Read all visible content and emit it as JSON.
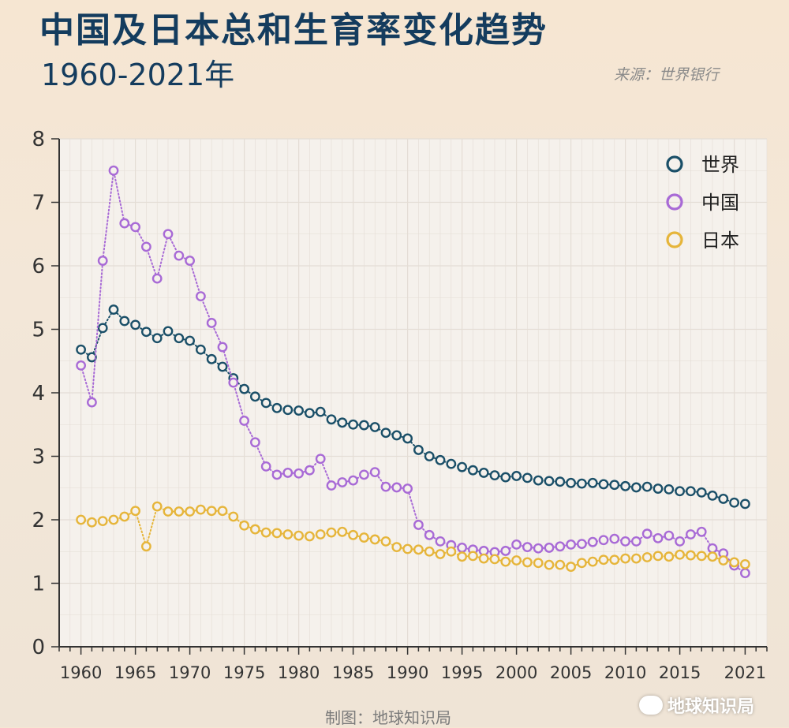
{
  "header": {
    "title": "中国及日本总和生育率变化趋势",
    "subtitle": "1960-2021年",
    "source": "来源：世界银行"
  },
  "footer": {
    "credit": "制图：地球知识局",
    "wechat_label": "地球知识局"
  },
  "colors": {
    "world": "#1a4f68",
    "china": "#a86ad6",
    "japan": "#e6b53a",
    "plot_bg": "#f5f1ec",
    "grid": "#e4ddd5",
    "axis": "#333333"
  },
  "chart_data": {
    "type": "line",
    "title": "中国及日本总和生育率变化趋势",
    "xlabel": "",
    "ylabel": "",
    "xlim": [
      1958.0,
      2023.0
    ],
    "ylim": [
      0,
      8
    ],
    "x_ticks": [
      "1960",
      "1965",
      "1970",
      "1975",
      "1980",
      "1985",
      "1990",
      "1995",
      "2000",
      "2005",
      "2010",
      "2015",
      "2021"
    ],
    "x_tick_values": [
      1960,
      1965,
      1970,
      1975,
      1980,
      1985,
      1990,
      1995,
      2000,
      2005,
      2010,
      2015,
      2021
    ],
    "y_ticks": [
      "0",
      "1",
      "2",
      "3",
      "4",
      "5",
      "6",
      "7",
      "8"
    ],
    "y_tick_values": [
      0,
      1,
      2,
      3,
      4,
      5,
      6,
      7,
      8
    ],
    "grid": true,
    "legend_position": "top-right",
    "x": [
      1960,
      1961,
      1962,
      1963,
      1964,
      1965,
      1966,
      1967,
      1968,
      1969,
      1970,
      1971,
      1972,
      1973,
      1974,
      1975,
      1976,
      1977,
      1978,
      1979,
      1980,
      1981,
      1982,
      1983,
      1984,
      1985,
      1986,
      1987,
      1988,
      1989,
      1990,
      1991,
      1992,
      1993,
      1994,
      1995,
      1996,
      1997,
      1998,
      1999,
      2000,
      2001,
      2002,
      2003,
      2004,
      2005,
      2006,
      2007,
      2008,
      2009,
      2010,
      2011,
      2012,
      2013,
      2014,
      2015,
      2016,
      2017,
      2018,
      2019,
      2020,
      2021
    ],
    "series": [
      {
        "name": "世界",
        "color": "#1a4f68",
        "values": [
          4.68,
          4.56,
          5.02,
          5.31,
          5.13,
          5.07,
          4.96,
          4.86,
          4.97,
          4.86,
          4.82,
          4.68,
          4.53,
          4.41,
          4.23,
          4.06,
          3.94,
          3.84,
          3.76,
          3.73,
          3.72,
          3.68,
          3.7,
          3.58,
          3.53,
          3.5,
          3.49,
          3.46,
          3.37,
          3.33,
          3.28,
          3.1,
          3.0,
          2.94,
          2.88,
          2.83,
          2.78,
          2.74,
          2.7,
          2.67,
          2.69,
          2.66,
          2.62,
          2.61,
          2.6,
          2.58,
          2.57,
          2.58,
          2.56,
          2.55,
          2.53,
          2.51,
          2.52,
          2.49,
          2.48,
          2.45,
          2.45,
          2.43,
          2.38,
          2.33,
          2.27,
          2.25
        ]
      },
      {
        "name": "中国",
        "color": "#a86ad6",
        "values": [
          4.43,
          3.85,
          6.08,
          7.5,
          6.67,
          6.61,
          6.3,
          5.8,
          6.5,
          6.16,
          6.08,
          5.52,
          5.1,
          4.72,
          4.16,
          3.56,
          3.22,
          2.84,
          2.71,
          2.74,
          2.73,
          2.78,
          2.96,
          2.54,
          2.59,
          2.62,
          2.71,
          2.75,
          2.52,
          2.51,
          2.49,
          1.92,
          1.76,
          1.66,
          1.6,
          1.56,
          1.53,
          1.51,
          1.49,
          1.51,
          1.61,
          1.57,
          1.55,
          1.56,
          1.58,
          1.61,
          1.62,
          1.65,
          1.68,
          1.7,
          1.66,
          1.66,
          1.78,
          1.71,
          1.75,
          1.66,
          1.77,
          1.81,
          1.55,
          1.47,
          1.28,
          1.16
        ]
      },
      {
        "name": "日本",
        "color": "#e6b53a",
        "values": [
          2.0,
          1.96,
          1.98,
          2.0,
          2.05,
          2.14,
          1.58,
          2.21,
          2.13,
          2.13,
          2.13,
          2.16,
          2.14,
          2.14,
          2.05,
          1.91,
          1.85,
          1.8,
          1.79,
          1.77,
          1.75,
          1.74,
          1.77,
          1.8,
          1.81,
          1.76,
          1.72,
          1.69,
          1.66,
          1.57,
          1.54,
          1.53,
          1.5,
          1.46,
          1.5,
          1.42,
          1.43,
          1.39,
          1.38,
          1.34,
          1.36,
          1.33,
          1.32,
          1.29,
          1.29,
          1.26,
          1.32,
          1.34,
          1.37,
          1.37,
          1.39,
          1.39,
          1.41,
          1.43,
          1.42,
          1.45,
          1.44,
          1.43,
          1.42,
          1.36,
          1.33,
          1.3
        ]
      }
    ]
  }
}
